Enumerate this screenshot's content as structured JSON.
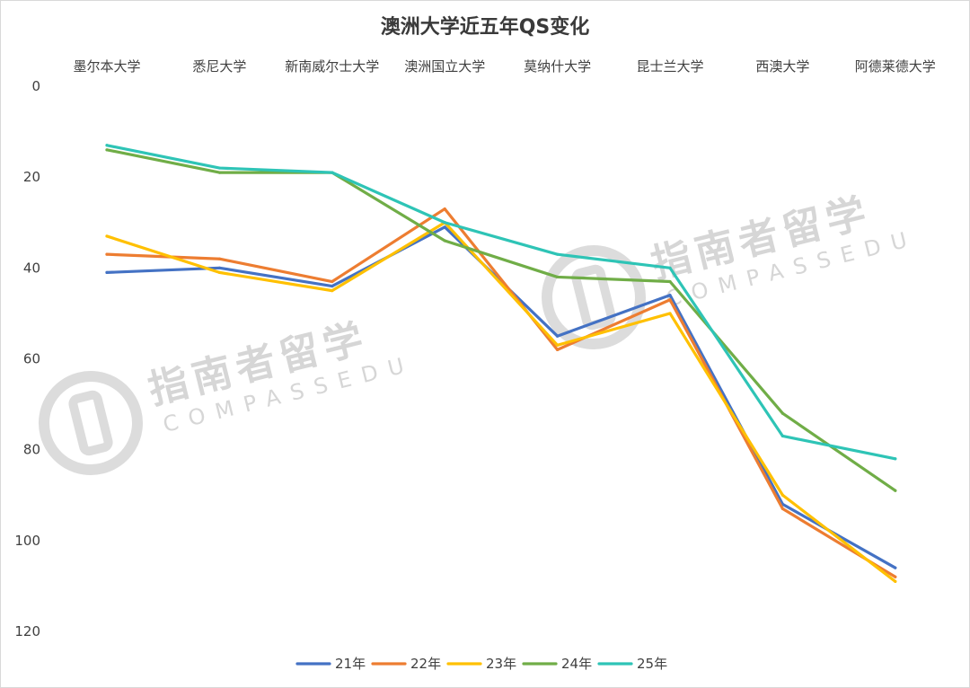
{
  "watermark": {
    "cn": "指南者留学",
    "en": "COMPASSEDU"
  },
  "chart_data": {
    "type": "line",
    "title": "澳洲大学近五年QS变化",
    "categories": [
      "墨尔本大学",
      "悉尼大学",
      "新南威尔士大学",
      "澳洲国立大学",
      "莫纳什大学",
      "昆士兰大学",
      "西澳大学",
      "阿德莱德大学"
    ],
    "ylim": [
      0,
      120
    ],
    "y_reversed": true,
    "y_ticks": [
      0,
      20,
      40,
      60,
      80,
      100,
      120
    ],
    "x_axis_position": "top",
    "grid": false,
    "legend_position": "bottom",
    "series": [
      {
        "name": "21年",
        "color": "#4472C4",
        "values": [
          41,
          40,
          44,
          31,
          55,
          46,
          92,
          106
        ]
      },
      {
        "name": "22年",
        "color": "#ED7D31",
        "values": [
          37,
          38,
          43,
          27,
          58,
          47,
          93,
          108
        ]
      },
      {
        "name": "23年",
        "color": "#FFC000",
        "values": [
          33,
          41,
          45,
          30,
          57,
          50,
          90,
          109
        ]
      },
      {
        "name": "24年",
        "color": "#70AD47",
        "values": [
          14,
          19,
          19,
          34,
          42,
          43,
          72,
          89
        ]
      },
      {
        "name": "25年",
        "color": "#2EC4B6",
        "values": [
          13,
          18,
          19,
          30,
          37,
          40,
          77,
          82
        ]
      }
    ]
  }
}
